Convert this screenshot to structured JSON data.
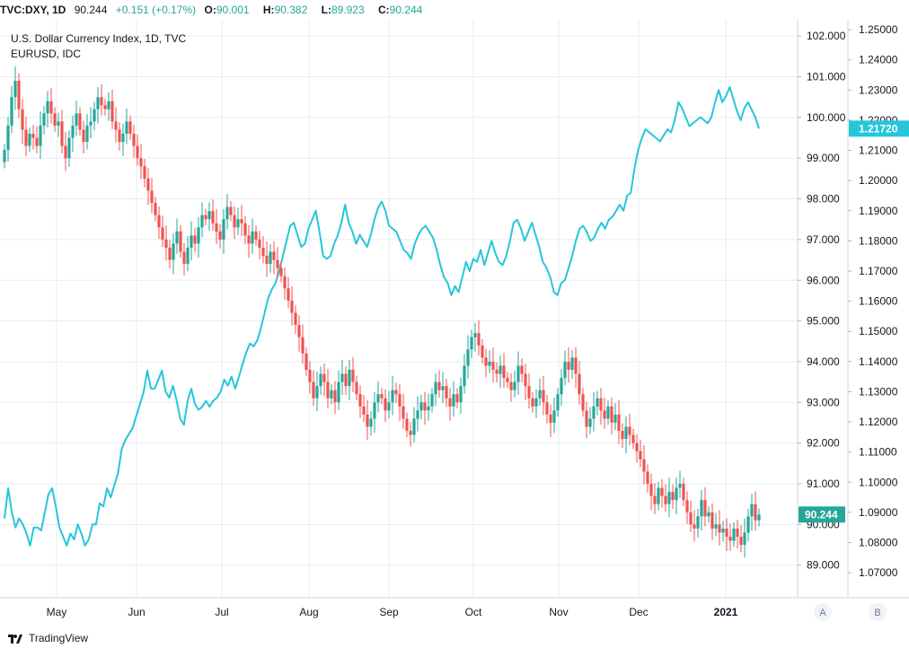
{
  "header": {
    "symbol": "TVC:DXY, 1D",
    "last": "90.244",
    "change": "+0.151 (+0.17%)",
    "o_label": "O:",
    "o_value": "90.001",
    "h_label": "H:",
    "h_value": "90.382",
    "l_label": "L:",
    "l_value": "89.923",
    "c_label": "C:",
    "c_value": "90.244"
  },
  "footer": {
    "brand": "TradingView"
  },
  "colors": {
    "up": "#26a69a",
    "down": "#ef5350",
    "eurusd_line": "#26c6da",
    "grid": "#e6ecf0",
    "axis_text": "#131722",
    "dxy_label_bg": "#26a69a",
    "eurusd_label_bg": "#26c6da"
  },
  "chart_data": {
    "type": "candlestick+line",
    "title": "U.S. Dollar Currency Index, 1D, TVC",
    "subtitle": "EURUSD, IDC",
    "x_ticks": [
      "May",
      "Jun",
      "Jul",
      "Aug",
      "Sep",
      "Oct",
      "Nov",
      "Dec",
      "2021"
    ],
    "left_scale": {
      "name": "A",
      "ylim": [
        88.2,
        102.4
      ],
      "ticks": [
        "102.000",
        "101.000",
        "100.000",
        "99.000",
        "98.000",
        "97.000",
        "96.000",
        "95.000",
        "94.000",
        "93.000",
        "92.000",
        "91.000",
        "90.000",
        "89.000"
      ],
      "last_label": "90.244",
      "last_value": 90.244
    },
    "right_scale": {
      "name": "B",
      "ylim": [
        1.0617,
        1.2533
      ],
      "ticks": [
        "1.25000",
        "1.24000",
        "1.23000",
        "1.22000",
        "1.21000",
        "1.20000",
        "1.19000",
        "1.18000",
        "1.17000",
        "1.16000",
        "1.15000",
        "1.14000",
        "1.13000",
        "1.12000",
        "1.11000",
        "1.10000",
        "1.09000",
        "1.08000",
        "1.07000"
      ],
      "last_label": "1.21720",
      "last_value": 1.2172
    },
    "series": [
      {
        "name": "DXY",
        "kind": "candles",
        "scale": "left",
        "closes": [
          99.2,
          99.8,
          100.5,
          100.9,
          100.2,
          99.7,
          99.3,
          99.6,
          99.5,
          99.3,
          99.8,
          100.1,
          100.4,
          100.1,
          99.8,
          99.9,
          99.3,
          99.0,
          99.5,
          99.8,
          100.1,
          99.7,
          99.4,
          99.8,
          99.9,
          100.2,
          100.5,
          100.3,
          100.2,
          100.4,
          99.9,
          99.7,
          99.4,
          99.6,
          99.9,
          99.6,
          99.3,
          99.0,
          98.8,
          98.5,
          98.2,
          97.9,
          97.6,
          97.3,
          97.0,
          96.8,
          96.5,
          96.9,
          97.2,
          96.7,
          96.4,
          96.8,
          97.1,
          96.9,
          97.3,
          97.6,
          97.5,
          97.7,
          97.4,
          97.2,
          97.0,
          97.5,
          97.8,
          97.6,
          97.3,
          97.5,
          97.4,
          97.1,
          96.9,
          97.2,
          97.0,
          96.8,
          96.6,
          96.4,
          96.7,
          96.5,
          96.3,
          96.1,
          95.8,
          95.5,
          95.2,
          94.9,
          94.6,
          94.2,
          93.8,
          93.5,
          93.1,
          93.4,
          93.7,
          93.5,
          93.1,
          93.3,
          93.0,
          93.5,
          93.7,
          93.4,
          93.8,
          93.5,
          93.2,
          92.9,
          92.7,
          92.4,
          92.6,
          93.0,
          93.2,
          93.1,
          92.8,
          93.0,
          93.3,
          93.2,
          92.9,
          92.6,
          92.3,
          92.2,
          92.6,
          92.8,
          93.0,
          92.8,
          92.9,
          93.2,
          93.5,
          93.3,
          93.4,
          93.1,
          92.9,
          93.2,
          93.0,
          93.4,
          93.9,
          94.3,
          94.6,
          94.7,
          94.4,
          94.1,
          93.9,
          94.0,
          93.8,
          93.7,
          93.9,
          93.6,
          93.5,
          93.3,
          93.5,
          93.9,
          93.7,
          93.4,
          93.1,
          92.9,
          93.1,
          93.3,
          93.0,
          92.7,
          92.5,
          92.8,
          93.2,
          93.6,
          94.0,
          93.8,
          94.1,
          93.7,
          93.2,
          92.8,
          92.4,
          92.6,
          92.9,
          93.1,
          92.8,
          92.6,
          92.9,
          92.5,
          92.7,
          92.3,
          92.1,
          92.4,
          92.2,
          92.0,
          91.8,
          91.6,
          91.3,
          91.0,
          90.7,
          90.5,
          90.9,
          90.7,
          90.5,
          90.8,
          90.6,
          90.9,
          91.0,
          90.6,
          90.3,
          90.0,
          89.9,
          90.2,
          90.6,
          90.2,
          90.3,
          89.9,
          90.0,
          89.8,
          89.9,
          89.7,
          89.6,
          89.9,
          89.7,
          89.5,
          89.8,
          90.2,
          90.5,
          90.1,
          90.244
        ],
        "note": "OHLC bars derived from closes; open = previous close"
      },
      {
        "name": "EURUSD",
        "kind": "line",
        "scale": "right",
        "x_start_index": 0,
        "values": [
          1.088,
          1.098,
          1.09,
          1.085,
          1.088,
          1.086,
          1.083,
          1.079,
          1.085,
          1.085,
          1.084,
          1.09,
          1.096,
          1.098,
          1.092,
          1.085,
          1.082,
          1.079,
          1.083,
          1.081,
          1.086,
          1.083,
          1.079,
          1.081,
          1.086,
          1.086,
          1.093,
          1.092,
          1.098,
          1.095,
          1.099,
          1.103,
          1.111,
          1.114,
          1.116,
          1.118,
          1.122,
          1.126,
          1.13,
          1.137,
          1.131,
          1.131,
          1.134,
          1.137,
          1.13,
          1.128,
          1.132,
          1.127,
          1.121,
          1.119,
          1.127,
          1.131,
          1.126,
          1.124,
          1.125,
          1.127,
          1.125,
          1.127,
          1.128,
          1.13,
          1.134,
          1.132,
          1.135,
          1.131,
          1.135,
          1.139,
          1.143,
          1.146,
          1.145,
          1.147,
          1.151,
          1.156,
          1.161,
          1.164,
          1.166,
          1.17,
          1.175,
          1.18,
          1.185,
          1.186,
          1.182,
          1.178,
          1.179,
          1.184,
          1.187,
          1.19,
          1.183,
          1.175,
          1.174,
          1.175,
          1.179,
          1.182,
          1.186,
          1.192,
          1.186,
          1.183,
          1.179,
          1.182,
          1.18,
          1.178,
          1.182,
          1.187,
          1.191,
          1.193,
          1.19,
          1.185,
          1.184,
          1.183,
          1.18,
          1.177,
          1.176,
          1.174,
          1.179,
          1.182,
          1.184,
          1.185,
          1.183,
          1.181,
          1.177,
          1.172,
          1.168,
          1.166,
          1.162,
          1.165,
          1.163,
          1.168,
          1.173,
          1.17,
          1.174,
          1.173,
          1.177,
          1.172,
          1.176,
          1.18,
          1.176,
          1.173,
          1.172,
          1.175,
          1.18,
          1.186,
          1.187,
          1.184,
          1.18,
          1.183,
          1.186,
          1.182,
          1.178,
          1.173,
          1.171,
          1.168,
          1.163,
          1.162,
          1.166,
          1.167,
          1.171,
          1.175,
          1.18,
          1.184,
          1.185,
          1.183,
          1.18,
          1.181,
          1.184,
          1.186,
          1.184,
          1.187,
          1.188,
          1.19,
          1.192,
          1.19,
          1.195,
          1.196,
          1.204,
          1.21,
          1.214,
          1.217,
          1.216,
          1.215,
          1.214,
          1.213,
          1.215,
          1.217,
          1.216,
          1.22,
          1.226,
          1.224,
          1.221,
          1.218,
          1.219,
          1.22,
          1.221,
          1.22,
          1.219,
          1.221,
          1.226,
          1.23,
          1.226,
          1.228,
          1.231,
          1.227,
          1.223,
          1.22,
          1.224,
          1.226,
          1.2235,
          1.221,
          1.2172
        ]
      }
    ]
  }
}
